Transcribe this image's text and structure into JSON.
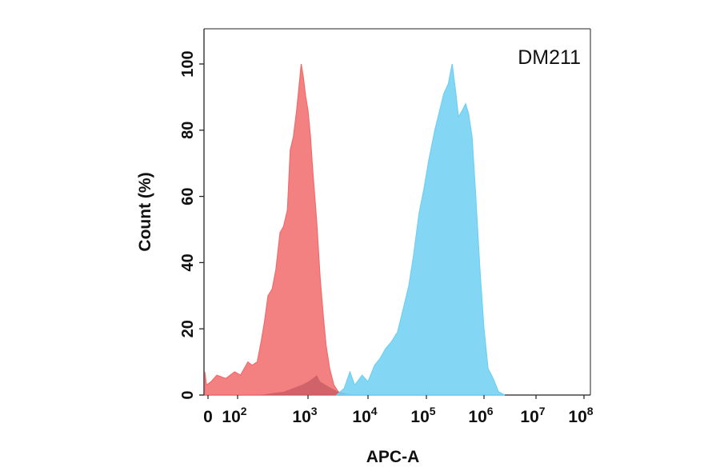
{
  "chart_data": {
    "type": "area",
    "annotation": "DM211",
    "xlabel": "APC-A",
    "ylabel": "Count  (%)",
    "x_scale": "biexponential",
    "xlim": [
      -30,
      100000000
    ],
    "ylim": [
      0,
      110
    ],
    "x_ticks": [
      {
        "value": 0,
        "base": "0",
        "exp": ""
      },
      {
        "value": 100,
        "base": "10",
        "exp": "2"
      },
      {
        "value": 1000,
        "base": "10",
        "exp": "3"
      },
      {
        "value": 10000,
        "base": "10",
        "exp": "4"
      },
      {
        "value": 100000,
        "base": "10",
        "exp": "5"
      },
      {
        "value": 1000000,
        "base": "10",
        "exp": "6"
      },
      {
        "value": 10000000,
        "base": "10",
        "exp": "7"
      },
      {
        "value": 100000000,
        "base": "10",
        "exp": "8"
      }
    ],
    "y_ticks": [
      "0",
      "20",
      "40",
      "60",
      "80",
      "100"
    ],
    "series": [
      {
        "color": "#f26b6b",
        "fill_opacity": 0.85,
        "points": [
          [
            -30,
            7
          ],
          [
            -5,
            3
          ],
          [
            10,
            4
          ],
          [
            30,
            6
          ],
          [
            60,
            5
          ],
          [
            90,
            7
          ],
          [
            110,
            6
          ],
          [
            140,
            10
          ],
          [
            160,
            9
          ],
          [
            190,
            10
          ],
          [
            215,
            16
          ],
          [
            240,
            22
          ],
          [
            270,
            30
          ],
          [
            310,
            32
          ],
          [
            350,
            38
          ],
          [
            400,
            49
          ],
          [
            450,
            51
          ],
          [
            510,
            56
          ],
          [
            560,
            74
          ],
          [
            620,
            78
          ],
          [
            690,
            86
          ],
          [
            760,
            95
          ],
          [
            800,
            100
          ],
          [
            860,
            96
          ],
          [
            930,
            90
          ],
          [
            1000,
            86
          ],
          [
            1100,
            78
          ],
          [
            1200,
            68
          ],
          [
            1400,
            52
          ],
          [
            1600,
            35
          ],
          [
            1800,
            24
          ],
          [
            2000,
            15
          ],
          [
            2300,
            8
          ],
          [
            2700,
            3
          ],
          [
            3200,
            1
          ],
          [
            4000,
            0.3
          ]
        ]
      },
      {
        "color": "#f26b6b",
        "fill_opacity": 0.85,
        "points": [
          [
            220,
            0
          ],
          [
            300,
            0.5
          ],
          [
            450,
            1
          ],
          [
            600,
            2
          ],
          [
            800,
            3
          ],
          [
            1000,
            4
          ],
          [
            1200,
            5
          ],
          [
            1400,
            6
          ],
          [
            1600,
            4
          ],
          [
            2000,
            3
          ],
          [
            2500,
            2
          ],
          [
            3200,
            1
          ],
          [
            4500,
            0.5
          ],
          [
            6000,
            0
          ]
        ]
      },
      {
        "color": "#6fd0f2",
        "fill_opacity": 0.85,
        "points": [
          [
            3000,
            0
          ],
          [
            4000,
            2
          ],
          [
            5000,
            7
          ],
          [
            6000,
            3
          ],
          [
            8000,
            6
          ],
          [
            10000,
            4
          ],
          [
            13000,
            9
          ],
          [
            16000,
            11
          ],
          [
            20000,
            14
          ],
          [
            25000,
            16
          ],
          [
            32000,
            19
          ],
          [
            40000,
            26
          ],
          [
            50000,
            33
          ],
          [
            60000,
            42
          ],
          [
            75000,
            55
          ],
          [
            90000,
            62
          ],
          [
            110000,
            71
          ],
          [
            140000,
            80
          ],
          [
            170000,
            86
          ],
          [
            200000,
            91
          ],
          [
            240000,
            94
          ],
          [
            280000,
            100
          ],
          [
            320000,
            92
          ],
          [
            360000,
            84
          ],
          [
            420000,
            86
          ],
          [
            480000,
            88
          ],
          [
            540000,
            85
          ],
          [
            620000,
            78
          ],
          [
            720000,
            60
          ],
          [
            850000,
            38
          ],
          [
            1000000,
            20
          ],
          [
            1200000,
            8
          ],
          [
            1500000,
            5
          ],
          [
            1900000,
            1
          ],
          [
            2500000,
            0
          ]
        ]
      }
    ]
  }
}
